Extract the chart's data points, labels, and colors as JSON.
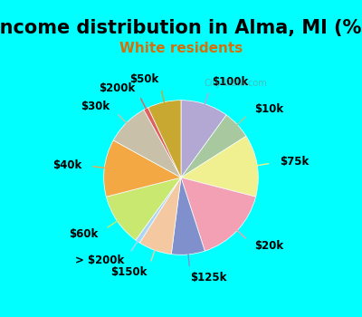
{
  "title": "Income distribution in Alma, MI (%)",
  "subtitle": "White residents",
  "background_color": "#00FFFF",
  "chart_bg": "#e8f5ee",
  "labels": [
    "$100k",
    "$10k",
    "$75k",
    "$20k",
    "$125k",
    "$150k",
    "> $200k",
    "$60k",
    "$40k",
    "$30k",
    "$200k",
    "$50k"
  ],
  "values": [
    10,
    6,
    13,
    16,
    7,
    7,
    1,
    11,
    12,
    9,
    1,
    7
  ],
  "colors": [
    "#b3a8d4",
    "#a8c8a0",
    "#f0f090",
    "#f4a0b4",
    "#8090cc",
    "#f4c8a0",
    "#b0d4f4",
    "#c8e870",
    "#f4a844",
    "#c8c0a8",
    "#e06060",
    "#c8a830"
  ],
  "watermark": "City-Data.com",
  "title_fontsize": 15,
  "subtitle_fontsize": 11,
  "label_fontsize": 8.5
}
